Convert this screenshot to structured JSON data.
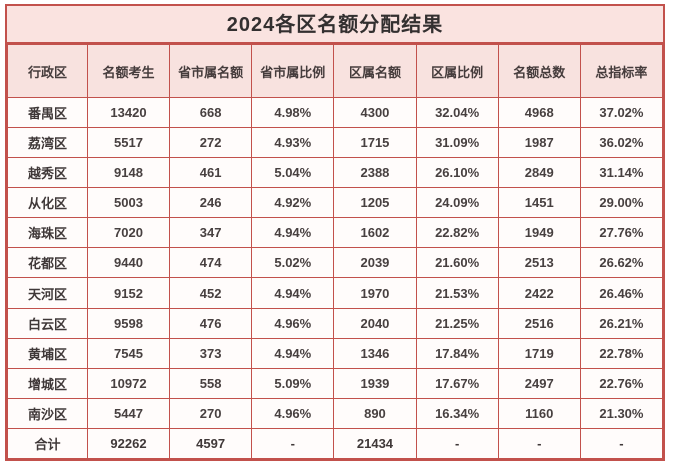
{
  "title": "2024各区名额分配结果",
  "colors": {
    "card_background": "#fae3e0",
    "cell_background": "#fffcfb",
    "grid_border": "#c2514c",
    "title_text": "#333030",
    "body_text": "#474040"
  },
  "table": {
    "headers": [
      "行政区",
      "名额考生",
      "省市属名额",
      "省市属比例",
      "区属名额",
      "区属比例",
      "名额总数",
      "总指标率"
    ],
    "rows": [
      [
        "番禺区",
        "13420",
        "668",
        "4.98%",
        "4300",
        "32.04%",
        "4968",
        "37.02%"
      ],
      [
        "荔湾区",
        "5517",
        "272",
        "4.93%",
        "1715",
        "31.09%",
        "1987",
        "36.02%"
      ],
      [
        "越秀区",
        "9148",
        "461",
        "5.04%",
        "2388",
        "26.10%",
        "2849",
        "31.14%"
      ],
      [
        "从化区",
        "5003",
        "246",
        "4.92%",
        "1205",
        "24.09%",
        "1451",
        "29.00%"
      ],
      [
        "海珠区",
        "7020",
        "347",
        "4.94%",
        "1602",
        "22.82%",
        "1949",
        "27.76%"
      ],
      [
        "花都区",
        "9440",
        "474",
        "5.02%",
        "2039",
        "21.60%",
        "2513",
        "26.62%"
      ],
      [
        "天河区",
        "9152",
        "452",
        "4.94%",
        "1970",
        "21.53%",
        "2422",
        "26.46%"
      ],
      [
        "白云区",
        "9598",
        "476",
        "4.96%",
        "2040",
        "21.25%",
        "2516",
        "26.21%"
      ],
      [
        "黄埔区",
        "7545",
        "373",
        "4.94%",
        "1346",
        "17.84%",
        "1719",
        "22.78%"
      ],
      [
        "增城区",
        "10972",
        "558",
        "5.09%",
        "1939",
        "17.67%",
        "2497",
        "22.76%"
      ],
      [
        "南沙区",
        "5447",
        "270",
        "4.96%",
        "890",
        "16.34%",
        "1160",
        "21.30%"
      ]
    ],
    "total_row": [
      "合计",
      "92262",
      "4597",
      "-",
      "21434",
      "-",
      "-",
      "-"
    ]
  }
}
